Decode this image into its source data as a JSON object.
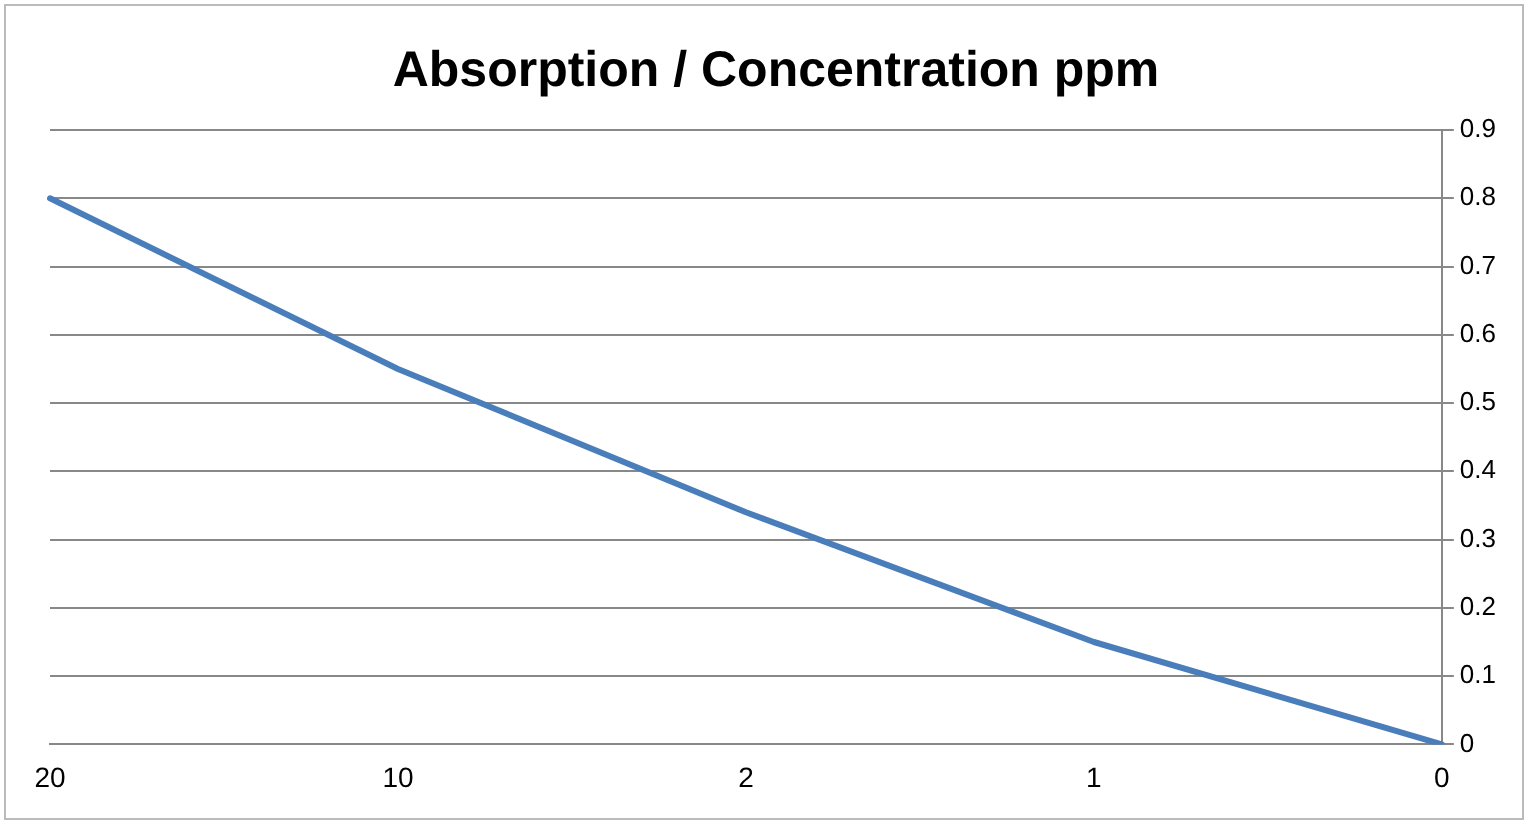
{
  "chart_data": {
    "type": "line",
    "title": "Absorption / Concentration ppm",
    "categories": [
      "20",
      "10",
      "2",
      "1",
      "0"
    ],
    "series": [
      {
        "color": "#4a7ebb",
        "values": [
          0.8,
          0.55,
          0.34,
          0.15,
          0.0
        ]
      }
    ],
    "ylim": [
      0,
      0.9
    ],
    "yticks": [
      0,
      0.1,
      0.2,
      0.3,
      0.4,
      0.5,
      0.6,
      0.7,
      0.8,
      0.9
    ],
    "grid": "y",
    "legend": false,
    "marker": "none",
    "line_style": "solid"
  }
}
